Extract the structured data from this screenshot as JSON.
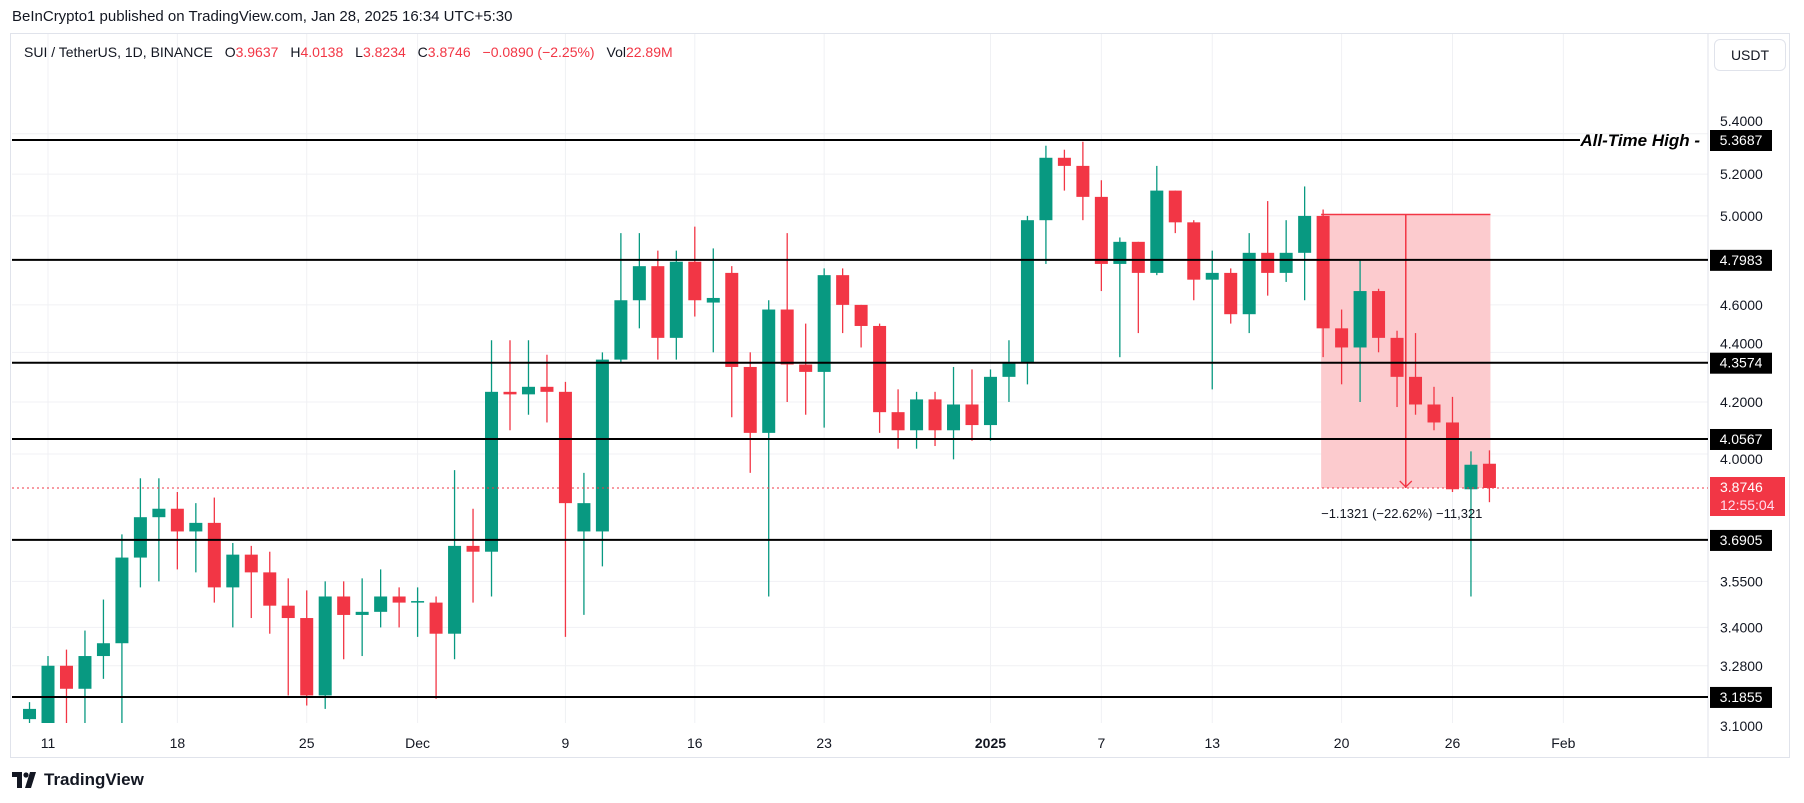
{
  "header": {
    "published": "BeInCrypto1 published on TradingView.com, Jan 28, 2025 16:34 UTC+5:30"
  },
  "legend": {
    "symbol": "SUI / TetherUS, 1D, BINANCE",
    "open_label": "O",
    "open": "3.9637",
    "high_label": "H",
    "high": "4.0138",
    "low_label": "L",
    "low": "3.8234",
    "close_label": "C",
    "close": "3.8746",
    "change": "−0.0890 (−2.25%)",
    "vol_label": "Vol",
    "vol": "22.89M"
  },
  "currency_button": "USDT",
  "footer": {
    "brand": "TradingView"
  },
  "colors": {
    "up": "#089981",
    "down": "#f23645",
    "level": "#000000",
    "measure_fill": "#fcc8cb"
  },
  "chart_data": {
    "type": "candlestick",
    "title": "SUI / TetherUS, 1D, BINANCE",
    "yscale": "log",
    "ylim": [
      3.1,
      5.45
    ],
    "grid": true,
    "x_start": "2024-11-10",
    "x_ticks": [
      {
        "day": 1,
        "label": "11"
      },
      {
        "day": 8,
        "label": "18"
      },
      {
        "day": 15,
        "label": "25"
      },
      {
        "day": 21,
        "label": "Dec"
      },
      {
        "day": 29,
        "label": "9"
      },
      {
        "day": 36,
        "label": "16"
      },
      {
        "day": 43,
        "label": "23"
      },
      {
        "day": 52,
        "label": "2025"
      },
      {
        "day": 58,
        "label": "7"
      },
      {
        "day": 64,
        "label": "13"
      },
      {
        "day": 71,
        "label": "20"
      },
      {
        "day": 77,
        "label": "26"
      },
      {
        "day": 83,
        "label": "Feb"
      }
    ],
    "y_ticks": [
      "5.2000",
      "5.0000",
      "4.6000",
      "4.4000",
      "4.2000",
      "4.0000",
      "3.5500",
      "3.4000",
      "3.2800",
      "3.1000",
      "5.4000"
    ],
    "ohlc": [
      [
        3.12,
        3.17,
        3.08,
        3.15
      ],
      [
        3.1,
        3.31,
        3.05,
        3.28
      ],
      [
        3.28,
        3.33,
        3.08,
        3.21
      ],
      [
        3.21,
        3.39,
        3.08,
        3.31
      ],
      [
        3.31,
        3.49,
        3.24,
        3.35
      ],
      [
        3.35,
        3.71,
        3.1,
        3.63
      ],
      [
        3.63,
        3.91,
        3.53,
        3.77
      ],
      [
        3.77,
        3.91,
        3.55,
        3.8
      ],
      [
        3.8,
        3.86,
        3.59,
        3.72
      ],
      [
        3.72,
        3.82,
        3.58,
        3.75
      ],
      [
        3.75,
        3.84,
        3.48,
        3.53
      ],
      [
        3.53,
        3.68,
        3.4,
        3.64
      ],
      [
        3.64,
        3.67,
        3.43,
        3.58
      ],
      [
        3.58,
        3.65,
        3.38,
        3.47
      ],
      [
        3.47,
        3.56,
        3.19,
        3.43
      ],
      [
        3.43,
        3.52,
        3.16,
        3.19
      ],
      [
        3.19,
        3.55,
        3.15,
        3.5
      ],
      [
        3.5,
        3.55,
        3.3,
        3.44
      ],
      [
        3.44,
        3.56,
        3.31,
        3.45
      ],
      [
        3.45,
        3.59,
        3.4,
        3.5
      ],
      [
        3.5,
        3.53,
        3.4,
        3.48
      ],
      [
        3.48,
        3.53,
        3.37,
        3.485
      ],
      [
        3.48,
        3.5,
        3.18,
        3.38
      ],
      [
        3.38,
        3.94,
        3.3,
        3.67
      ],
      [
        3.67,
        3.8,
        3.48,
        3.65
      ],
      [
        3.65,
        4.45,
        3.5,
        4.24
      ],
      [
        4.24,
        4.45,
        4.09,
        4.23
      ],
      [
        4.23,
        4.45,
        4.15,
        4.26
      ],
      [
        4.26,
        4.39,
        4.12,
        4.24
      ],
      [
        4.24,
        4.28,
        3.37,
        3.82
      ],
      [
        3.72,
        3.93,
        3.44,
        3.82
      ],
      [
        3.72,
        4.4,
        3.6,
        4.37
      ],
      [
        4.37,
        4.92,
        4.36,
        4.62
      ],
      [
        4.62,
        4.92,
        4.5,
        4.77
      ],
      [
        4.77,
        4.84,
        4.37,
        4.46
      ],
      [
        4.46,
        4.84,
        4.37,
        4.79
      ],
      [
        4.79,
        4.95,
        4.55,
        4.62
      ],
      [
        4.61,
        4.85,
        4.4,
        4.63
      ],
      [
        4.74,
        4.77,
        4.14,
        4.34
      ],
      [
        4.34,
        4.4,
        3.93,
        4.08
      ],
      [
        4.08,
        4.62,
        3.5,
        4.58
      ],
      [
        4.58,
        4.92,
        4.2,
        4.35
      ],
      [
        4.35,
        4.52,
        4.15,
        4.32
      ],
      [
        4.32,
        4.76,
        4.1,
        4.73
      ],
      [
        4.73,
        4.76,
        4.48,
        4.6
      ],
      [
        4.6,
        4.6,
        4.42,
        4.51
      ],
      [
        4.51,
        4.52,
        4.08,
        4.16
      ],
      [
        4.16,
        4.25,
        4.02,
        4.09
      ],
      [
        4.09,
        4.24,
        4.02,
        4.21
      ],
      [
        4.21,
        4.24,
        4.03,
        4.09
      ],
      [
        4.09,
        4.34,
        3.98,
        4.19
      ],
      [
        4.19,
        4.33,
        4.05,
        4.11
      ],
      [
        4.11,
        4.33,
        4.05,
        4.3
      ],
      [
        4.3,
        4.45,
        4.2,
        4.36
      ],
      [
        4.36,
        5.0,
        4.27,
        4.98
      ],
      [
        4.98,
        5.34,
        4.78,
        5.28
      ],
      [
        5.28,
        5.32,
        5.12,
        5.24
      ],
      [
        5.24,
        5.36,
        4.98,
        5.09
      ],
      [
        5.09,
        5.17,
        4.66,
        4.78
      ],
      [
        4.78,
        4.9,
        4.38,
        4.88
      ],
      [
        4.88,
        4.88,
        4.48,
        4.74
      ],
      [
        4.74,
        5.24,
        4.73,
        5.12
      ],
      [
        5.12,
        5.12,
        4.92,
        4.97
      ],
      [
        4.97,
        4.98,
        4.62,
        4.71
      ],
      [
        4.71,
        4.84,
        4.25,
        4.74
      ],
      [
        4.74,
        4.76,
        4.52,
        4.56
      ],
      [
        4.56,
        4.92,
        4.48,
        4.83
      ],
      [
        4.83,
        5.07,
        4.64,
        4.74
      ],
      [
        4.74,
        4.98,
        4.7,
        4.83
      ],
      [
        4.83,
        5.14,
        4.62,
        5.0
      ],
      [
        5.0,
        5.03,
        4.38,
        4.5
      ],
      [
        4.5,
        4.58,
        4.27,
        4.42
      ],
      [
        4.42,
        4.8,
        4.2,
        4.66
      ],
      [
        4.66,
        4.67,
        4.4,
        4.46
      ],
      [
        4.46,
        4.49,
        4.18,
        4.3
      ],
      [
        4.3,
        4.48,
        4.15,
        4.19
      ],
      [
        4.19,
        4.26,
        4.09,
        4.12
      ],
      [
        4.12,
        4.22,
        3.86,
        3.87
      ],
      [
        3.87,
        4.01,
        3.5,
        3.96
      ],
      [
        3.9637,
        4.0138,
        3.8234,
        3.8746
      ]
    ],
    "levels": [
      {
        "value": 5.3687,
        "label": "5.3687",
        "annotation": "All-Time High"
      },
      {
        "value": 4.7983,
        "label": "4.7983"
      },
      {
        "value": 4.3574,
        "label": "4.3574"
      },
      {
        "value": 4.0567,
        "label": "4.0567"
      },
      {
        "value": 3.6905,
        "label": "3.6905"
      },
      {
        "value": 3.1855,
        "label": "3.1855"
      }
    ],
    "last_price": {
      "value": 3.8746,
      "label": "3.8746",
      "countdown": "12:55:04"
    },
    "measure": {
      "from_day": 70,
      "to_day": 79,
      "top": 5.0067,
      "bottom": 3.8746,
      "label": "−1.1321 (−22.62%) −11,321"
    }
  }
}
